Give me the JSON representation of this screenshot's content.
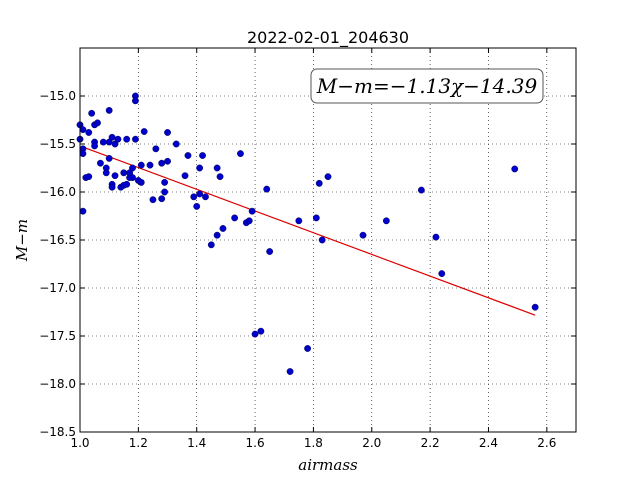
{
  "chart_data": {
    "type": "scatter",
    "title": "2022-02-01_204630",
    "xlabel": "airmass",
    "ylabel": "M−m",
    "xlim": [
      1.0,
      2.7
    ],
    "ylim": [
      -18.5,
      -14.5
    ],
    "xticks": [
      "1.0",
      "1.2",
      "1.4",
      "1.6",
      "1.8",
      "2.0",
      "2.2",
      "2.4",
      "2.6"
    ],
    "yticks": [
      "−15.0",
      "−15.5",
      "−16.0",
      "−16.5",
      "−17.0",
      "−17.5",
      "−18.0",
      "−18.5"
    ],
    "grid": true,
    "annotation": "M−m=−1.13χ−14.39",
    "fit": {
      "slope": -1.13,
      "intercept": -14.39,
      "x_range": [
        1.01,
        2.56
      ],
      "color": "#dd0000"
    },
    "point_color": "#0000cc",
    "points": [
      [
        1.0,
        -15.3
      ],
      [
        1.0,
        -15.45
      ],
      [
        1.01,
        -15.35
      ],
      [
        1.01,
        -15.55
      ],
      [
        1.01,
        -15.6
      ],
      [
        1.01,
        -16.2
      ],
      [
        1.02,
        -15.85
      ],
      [
        1.03,
        -15.84
      ],
      [
        1.03,
        -15.38
      ],
      [
        1.04,
        -15.18
      ],
      [
        1.05,
        -15.3
      ],
      [
        1.05,
        -15.48
      ],
      [
        1.05,
        -15.52
      ],
      [
        1.06,
        -15.28
      ],
      [
        1.07,
        -15.7
      ],
      [
        1.08,
        -15.48
      ],
      [
        1.09,
        -15.75
      ],
      [
        1.09,
        -15.8
      ],
      [
        1.1,
        -15.15
      ],
      [
        1.1,
        -15.48
      ],
      [
        1.1,
        -15.65
      ],
      [
        1.11,
        -15.43
      ],
      [
        1.11,
        -15.92
      ],
      [
        1.11,
        -15.95
      ],
      [
        1.12,
        -15.5
      ],
      [
        1.12,
        -15.83
      ],
      [
        1.13,
        -15.45
      ],
      [
        1.14,
        -15.95
      ],
      [
        1.15,
        -15.8
      ],
      [
        1.15,
        -15.93
      ],
      [
        1.16,
        -15.45
      ],
      [
        1.16,
        -15.92
      ],
      [
        1.17,
        -15.85
      ],
      [
        1.17,
        -15.8
      ],
      [
        1.18,
        -15.85
      ],
      [
        1.18,
        -15.75
      ],
      [
        1.19,
        -15.0
      ],
      [
        1.19,
        -15.05
      ],
      [
        1.19,
        -15.45
      ],
      [
        1.2,
        -15.88
      ],
      [
        1.21,
        -15.9
      ],
      [
        1.21,
        -15.72
      ],
      [
        1.22,
        -15.37
      ],
      [
        1.24,
        -15.72
      ],
      [
        1.25,
        -16.08
      ],
      [
        1.26,
        -15.55
      ],
      [
        1.28,
        -16.07
      ],
      [
        1.28,
        -15.7
      ],
      [
        1.29,
        -15.9
      ],
      [
        1.29,
        -16.0
      ],
      [
        1.3,
        -15.38
      ],
      [
        1.3,
        -15.68
      ],
      [
        1.33,
        -15.5
      ],
      [
        1.36,
        -15.83
      ],
      [
        1.37,
        -15.62
      ],
      [
        1.39,
        -16.05
      ],
      [
        1.4,
        -16.15
      ],
      [
        1.41,
        -16.02
      ],
      [
        1.41,
        -15.75
      ],
      [
        1.42,
        -15.62
      ],
      [
        1.43,
        -16.05
      ],
      [
        1.45,
        -16.55
      ],
      [
        1.47,
        -16.45
      ],
      [
        1.47,
        -15.75
      ],
      [
        1.48,
        -15.84
      ],
      [
        1.49,
        -16.38
      ],
      [
        1.53,
        -16.27
      ],
      [
        1.55,
        -15.6
      ],
      [
        1.57,
        -16.32
      ],
      [
        1.58,
        -16.3
      ],
      [
        1.59,
        -16.2
      ],
      [
        1.6,
        -17.48
      ],
      [
        1.62,
        -17.45
      ],
      [
        1.64,
        -15.97
      ],
      [
        1.65,
        -16.62
      ],
      [
        1.72,
        -17.87
      ],
      [
        1.75,
        -16.3
      ],
      [
        1.78,
        -17.63
      ],
      [
        1.81,
        -16.27
      ],
      [
        1.82,
        -15.91
      ],
      [
        1.83,
        -16.5
      ],
      [
        1.85,
        -15.84
      ],
      [
        1.97,
        -16.45
      ],
      [
        2.05,
        -16.3
      ],
      [
        2.17,
        -15.98
      ],
      [
        2.22,
        -16.47
      ],
      [
        2.24,
        -16.85
      ],
      [
        2.49,
        -15.76
      ],
      [
        2.56,
        -17.2
      ]
    ]
  }
}
